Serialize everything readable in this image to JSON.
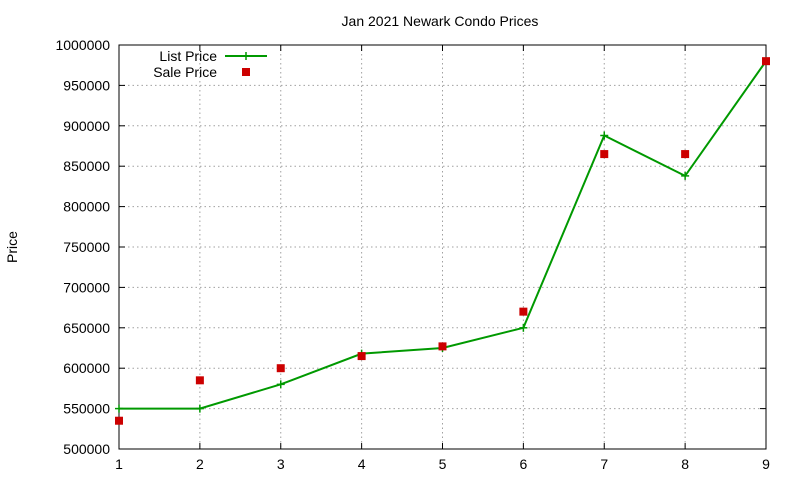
{
  "chart_data": {
    "type": "line",
    "title": "Jan 2021 Newark Condo Prices",
    "xlabel": "",
    "ylabel": "Price",
    "xlim": [
      1,
      9
    ],
    "ylim": [
      500000,
      1000000
    ],
    "xticks": [
      "1",
      "2",
      "3",
      "4",
      "5",
      "6",
      "7",
      "8",
      "9"
    ],
    "yticks": [
      "500000",
      "550000",
      "600000",
      "650000",
      "700000",
      "750000",
      "800000",
      "850000",
      "900000",
      "950000",
      "1000000"
    ],
    "grid": true,
    "legend_position": "top-left",
    "series": [
      {
        "name": "List Price",
        "style": "line+cross",
        "color": "#009900",
        "x": [
          1,
          2,
          3,
          4,
          5,
          6,
          7,
          8,
          9
        ],
        "values": [
          550000,
          550000,
          580000,
          618000,
          625000,
          650000,
          888000,
          838000,
          980000
        ]
      },
      {
        "name": "Sale Price",
        "style": "square",
        "color": "#cc0000",
        "x": [
          1,
          2,
          3,
          4,
          5,
          6,
          7,
          8,
          9
        ],
        "values": [
          535000,
          585000,
          600000,
          615000,
          627000,
          670000,
          865000,
          865000,
          980000
        ]
      }
    ]
  }
}
